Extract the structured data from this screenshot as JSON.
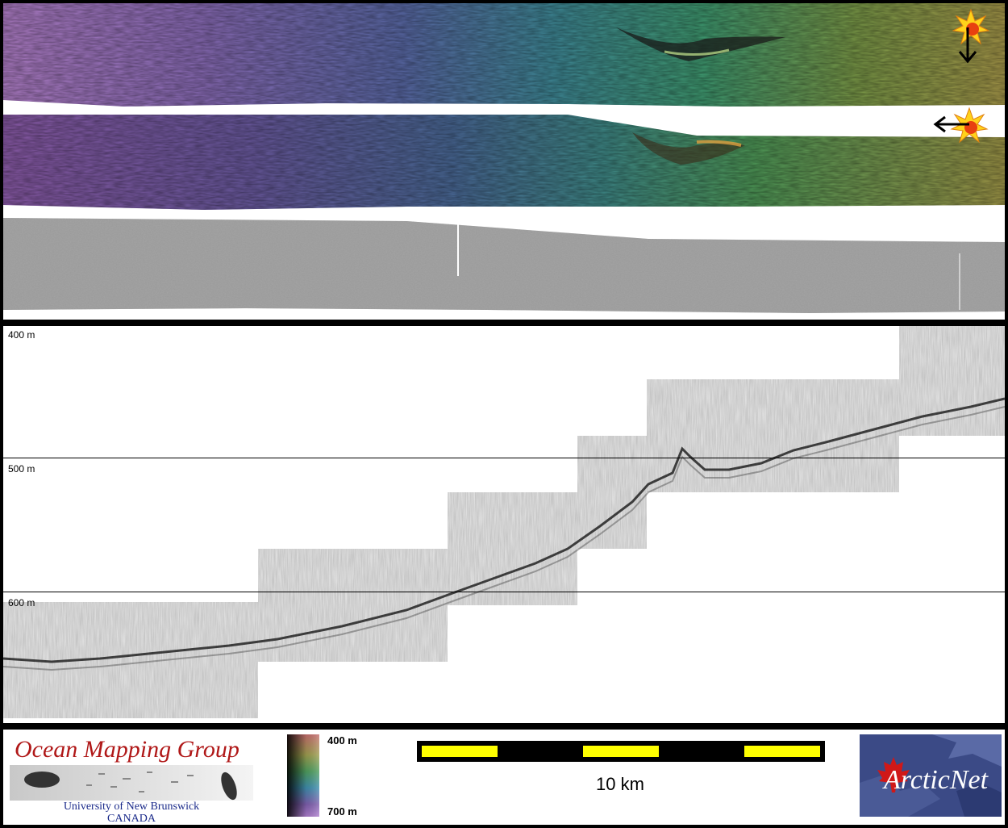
{
  "profile": {
    "depth_labels": [
      "400 m",
      "500 m",
      "600 m"
    ]
  },
  "footer": {
    "ocean_group_title": "Ocean Mapping Group",
    "ocean_group_university": "University of New Brunswick",
    "ocean_group_country": "CANADA",
    "colorbar_top_label": "400 m",
    "colorbar_bottom_label": "700 m",
    "scale_label": "10 km",
    "arcticnet_logo_text": "ArcticNet"
  },
  "icons": {
    "sun_1": "sun-illumination-icon",
    "sun_2": "sun-illumination-icon",
    "arrow_1": "arrow-down-icon",
    "arrow_2": "arrow-left-icon"
  },
  "colors": {
    "scalebar_yellow": "#ffff00",
    "ocean_title_red": "#b01818",
    "arcticnet_blue": "#3b4a86",
    "maple_leaf_red": "#d01818"
  }
}
